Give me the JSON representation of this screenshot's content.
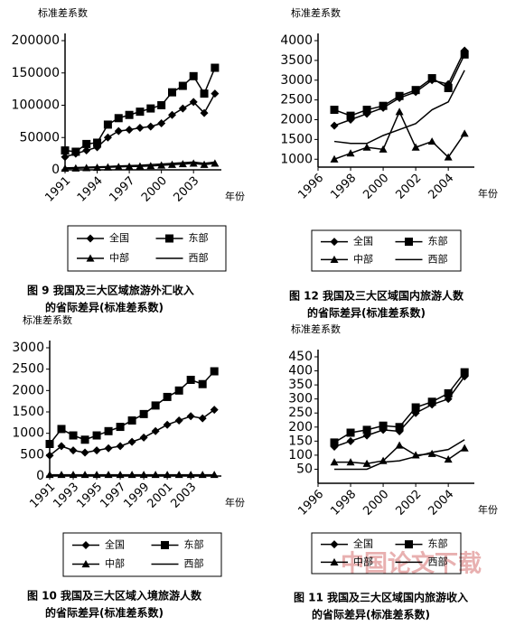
{
  "chart_data": [
    {
      "type": "line",
      "ylabel": "标准差系数",
      "xlabel": "年份",
      "x": [
        1991,
        1992,
        1993,
        1994,
        1995,
        1996,
        1997,
        1998,
        1999,
        2000,
        2001,
        2002,
        2003,
        2004,
        2005
      ],
      "xlim": [
        1991,
        2005.6
      ],
      "xticks": [
        1991,
        1994,
        1997,
        2000,
        2003
      ],
      "ylim": [
        0,
        200000
      ],
      "yticks": [
        0,
        50000,
        100000,
        150000,
        200000
      ],
      "series": [
        {
          "name": "全国",
          "marker": "diamond",
          "color": "#000",
          "values": [
            20000,
            25000,
            30000,
            35000,
            50000,
            60000,
            62000,
            65000,
            67000,
            72000,
            85000,
            95000,
            105000,
            88000,
            118000
          ]
        },
        {
          "name": "东部",
          "marker": "square",
          "color": "#000",
          "values": [
            30000,
            28000,
            40000,
            42000,
            70000,
            80000,
            85000,
            90000,
            95000,
            100000,
            120000,
            130000,
            145000,
            118000,
            158000
          ]
        },
        {
          "name": "中部",
          "marker": "triangle",
          "color": "#000",
          "values": [
            2000,
            2500,
            3000,
            3500,
            4000,
            4500,
            5000,
            5500,
            6000,
            7000,
            8000,
            9000,
            10000,
            8000,
            10000
          ]
        },
        {
          "name": "西部",
          "marker": "none",
          "color": "#000",
          "values": [
            3000,
            3500,
            4000,
            4500,
            5000,
            6000,
            6500,
            7000,
            8000,
            9000,
            10000,
            11000,
            12000,
            10000,
            12000
          ]
        }
      ],
      "caption": [
        "图 9  我国及三大区域旅游外汇收入",
        "的省际差异(标准差系数)"
      ]
    },
    {
      "type": "line",
      "ylabel": "标准差系数",
      "xlabel": "年份",
      "x": [
        1997,
        1998,
        1999,
        2000,
        2001,
        2002,
        2003,
        2004,
        2005
      ],
      "xlim": [
        1996,
        2005.6
      ],
      "xticks": [
        1996,
        1998,
        2000,
        2002,
        2004
      ],
      "ylim": [
        800,
        4000
      ],
      "yticks": [
        1000,
        1500,
        2000,
        2500,
        3000,
        3500,
        4000
      ],
      "series": [
        {
          "name": "全国",
          "marker": "diamond",
          "color": "#000",
          "values": [
            1850,
            2000,
            2150,
            2300,
            2550,
            2700,
            3000,
            2900,
            3750
          ]
        },
        {
          "name": "东部",
          "marker": "square",
          "color": "#000",
          "values": [
            2250,
            2100,
            2250,
            2350,
            2600,
            2750,
            3050,
            2800,
            3650
          ]
        },
        {
          "name": "中部",
          "marker": "triangle",
          "color": "#000",
          "values": [
            1000,
            1150,
            1300,
            1250,
            2200,
            1300,
            1450,
            1050,
            1650
          ]
        },
        {
          "name": "西部",
          "marker": "none",
          "color": "#000",
          "values": [
            1450,
            1400,
            1400,
            1600,
            1750,
            1900,
            2250,
            2450,
            3250
          ]
        }
      ],
      "caption": [
        "图 12  我国及三大区域国内旅游人数",
        "的省际差异(标准差系数)"
      ]
    },
    {
      "type": "line",
      "ylabel": "标准差系数",
      "xlabel": "年份",
      "x": [
        1991,
        1992,
        1993,
        1994,
        1995,
        1996,
        1997,
        1998,
        1999,
        2000,
        2001,
        2002,
        2003,
        2004,
        2005
      ],
      "xlim": [
        1991,
        2005.6
      ],
      "xticks": [
        1991,
        1993,
        1995,
        1997,
        1999,
        2001,
        2003
      ],
      "ylim": [
        0,
        3000
      ],
      "yticks": [
        0,
        500,
        1000,
        1500,
        2000,
        2500,
        3000
      ],
      "series": [
        {
          "name": "全国",
          "marker": "diamond",
          "color": "#000",
          "values": [
            480,
            700,
            600,
            550,
            600,
            650,
            700,
            800,
            900,
            1050,
            1200,
            1300,
            1400,
            1350,
            1550
          ]
        },
        {
          "name": "东部",
          "marker": "square",
          "color": "#000",
          "values": [
            750,
            1100,
            950,
            850,
            950,
            1050,
            1150,
            1300,
            1450,
            1650,
            1850,
            2000,
            2250,
            2150,
            2450
          ]
        },
        {
          "name": "中部",
          "marker": "triangle",
          "color": "#000",
          "values": [
            30,
            30,
            30,
            30,
            30,
            30,
            30,
            30,
            30,
            30,
            30,
            30,
            30,
            30,
            30
          ]
        },
        {
          "name": "西部",
          "marker": "none",
          "color": "#000",
          "values": [
            20,
            20,
            20,
            20,
            20,
            20,
            20,
            20,
            20,
            20,
            20,
            20,
            20,
            20,
            20
          ]
        }
      ],
      "caption": [
        "图 10  我国及三大区域入境旅游人数",
        "的省际差异(标准差系数)"
      ]
    },
    {
      "type": "line",
      "ylabel": "标准差系数",
      "xlabel": "年份",
      "x": [
        1997,
        1998,
        1999,
        2000,
        2001,
        2002,
        2003,
        2004,
        2005
      ],
      "xlim": [
        1996,
        2005.6
      ],
      "xticks": [
        1996,
        1998,
        2000,
        2002,
        2004
      ],
      "ylim": [
        0,
        450
      ],
      "yticks": [
        50,
        100,
        150,
        200,
        250,
        300,
        350,
        400,
        450
      ],
      "series": [
        {
          "name": "全国",
          "marker": "diamond",
          "color": "#000",
          "values": [
            130,
            150,
            170,
            190,
            185,
            250,
            280,
            300,
            380
          ]
        },
        {
          "name": "东部",
          "marker": "square",
          "color": "#000",
          "values": [
            145,
            180,
            190,
            205,
            200,
            270,
            290,
            320,
            395
          ]
        },
        {
          "name": "中部",
          "marker": "triangle",
          "color": "#000",
          "values": [
            75,
            75,
            70,
            80,
            135,
            100,
            105,
            85,
            125
          ]
        },
        {
          "name": "西部",
          "marker": "none",
          "color": "#000",
          "values": [
            50,
            50,
            50,
            75,
            80,
            95,
            110,
            120,
            155
          ]
        }
      ],
      "caption": [
        "图 11  我国及三大区域国内旅游收入",
        "的省际差异(标准差系数)"
      ]
    }
  ],
  "watermark": "中国论文下载"
}
